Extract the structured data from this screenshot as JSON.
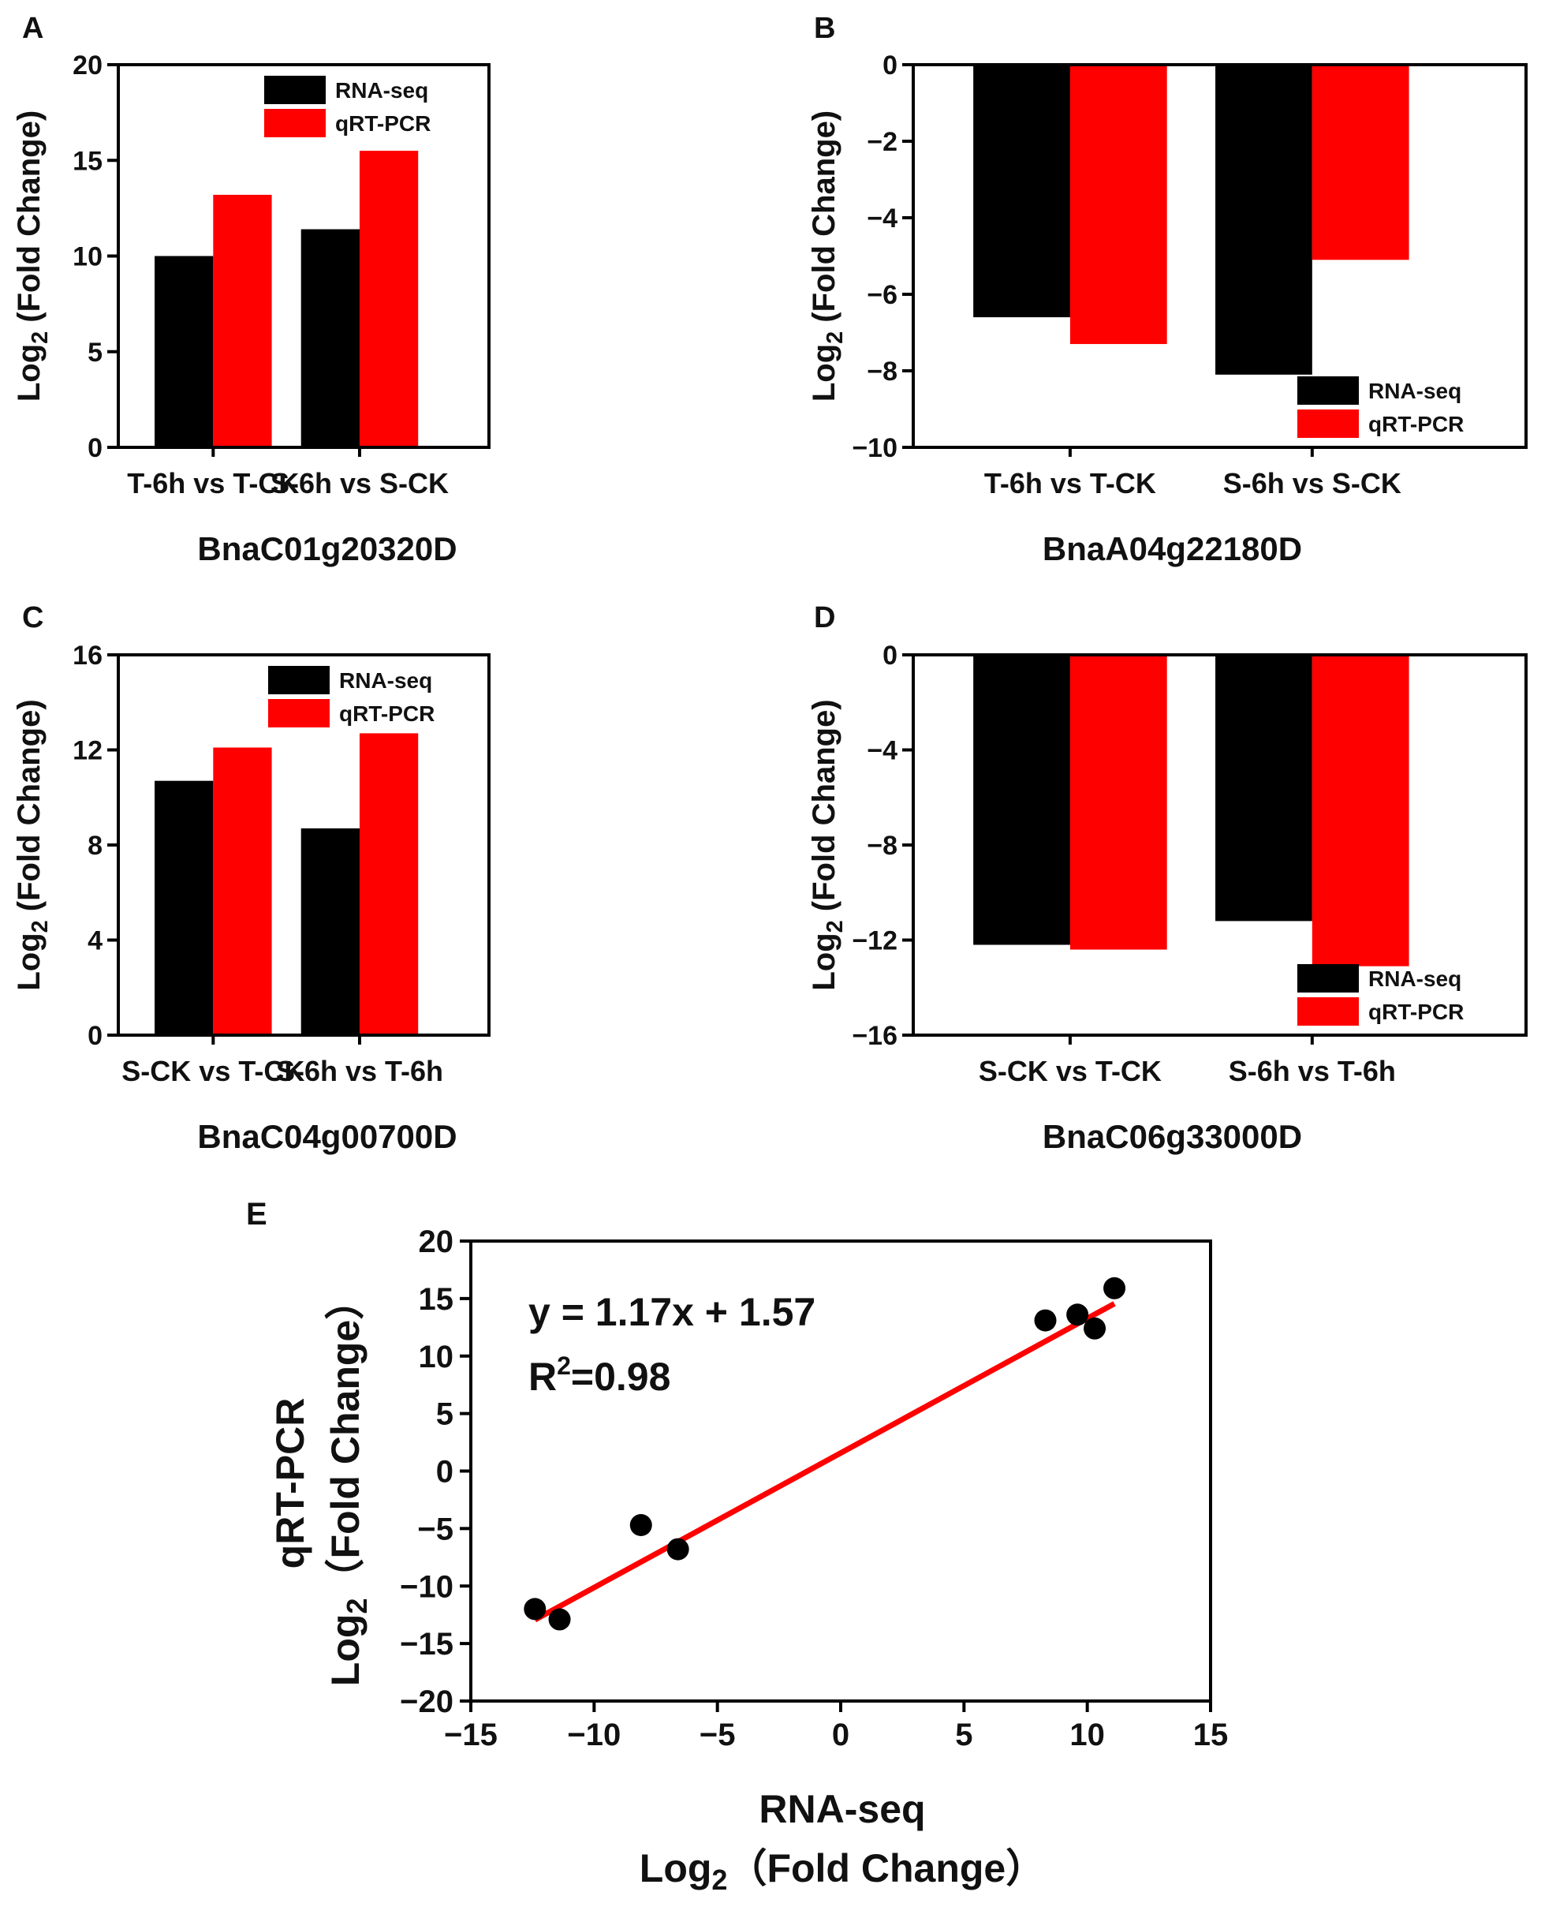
{
  "chart_data": [
    {
      "panel": "A",
      "type": "bar",
      "categories": [
        "T-6h vs T-CK",
        "S-6h vs S-CK"
      ],
      "series": [
        {
          "name": "RNA-seq",
          "color": "#000000",
          "values": [
            10,
            11.4
          ]
        },
        {
          "name": "qRT-PCR",
          "color": "#ff0000",
          "values": [
            13.2,
            15.5
          ]
        }
      ],
      "ylim": [
        0,
        20
      ],
      "yticks": [
        0,
        5,
        10,
        15,
        20
      ],
      "ylabel": "Log2 (Fold Change)",
      "title": "BnaC01g20320D",
      "legend": "top-right"
    },
    {
      "panel": "B",
      "type": "bar",
      "categories": [
        "T-6h vs T-CK",
        "S-6h vs S-CK"
      ],
      "series": [
        {
          "name": "RNA-seq",
          "color": "#000000",
          "values": [
            -6.6,
            -8.1
          ]
        },
        {
          "name": "qRT-PCR",
          "color": "#ff0000",
          "values": [
            -7.3,
            -5.1
          ]
        }
      ],
      "ylim": [
        -10,
        0
      ],
      "yticks": [
        0,
        -2,
        -4,
        -6,
        -8,
        -10
      ],
      "ylabel": "Log2 (Fold Change)",
      "title": "BnaA04g22180D",
      "legend": "bottom-right"
    },
    {
      "panel": "C",
      "type": "bar",
      "categories": [
        "S-CK vs T-CK",
        "S-6h vs T-6h"
      ],
      "series": [
        {
          "name": "RNA-seq",
          "color": "#000000",
          "values": [
            10.7,
            8.7
          ]
        },
        {
          "name": "qRT-PCR",
          "color": "#ff0000",
          "values": [
            12.1,
            12.7
          ]
        }
      ],
      "ylim": [
        0,
        16
      ],
      "yticks": [
        0,
        4,
        8,
        12,
        16
      ],
      "ylabel": "Log2 (Fold Change)",
      "title": "BnaC04g00700D",
      "legend": "top-right"
    },
    {
      "panel": "D",
      "type": "bar",
      "categories": [
        "S-CK vs T-CK",
        "S-6h vs T-6h"
      ],
      "series": [
        {
          "name": "RNA-seq",
          "color": "#000000",
          "values": [
            -12.2,
            -11.2
          ]
        },
        {
          "name": "qRT-PCR",
          "color": "#ff0000",
          "values": [
            -12.4,
            -13.1
          ]
        }
      ],
      "ylim": [
        -16,
        0
      ],
      "yticks": [
        0,
        -4,
        -8,
        -12,
        -16
      ],
      "ylabel": "Log2 (Fold Change)",
      "title": "BnaC06g33000D",
      "legend": "bottom-right"
    },
    {
      "panel": "E",
      "type": "scatter",
      "points": [
        {
          "x": -12.4,
          "y": -12
        },
        {
          "x": -11.4,
          "y": -12.9
        },
        {
          "x": -8.1,
          "y": -4.7
        },
        {
          "x": -6.6,
          "y": -6.8
        },
        {
          "x": 8.3,
          "y": 13.1
        },
        {
          "x": 9.6,
          "y": 13.6
        },
        {
          "x": 10.3,
          "y": 12.4
        },
        {
          "x": 11.1,
          "y": 15.9
        }
      ],
      "fit": {
        "slope": 1.17,
        "intercept": 1.57,
        "x_range": [
          -12.4,
          11.1
        ],
        "color": "#ff0000"
      },
      "equation": "y = 1.17x + 1.57",
      "r2_label": "R",
      "r2_sup": "2",
      "r2_value": "=0.98",
      "xlim": [
        -15,
        15
      ],
      "ylim": [
        -20,
        20
      ],
      "xticks": [
        -15,
        -10,
        -5,
        0,
        5,
        10,
        15
      ],
      "yticks": [
        -20,
        -15,
        -10,
        -5,
        0,
        5,
        10,
        15,
        20
      ],
      "xlabel_line1": "RNA-seq",
      "xlabel_line2": "Log2（Fold Change）",
      "ylabel_line1": "qRT-PCR",
      "ylabel_line2": "Log2（Fold Change）"
    }
  ]
}
